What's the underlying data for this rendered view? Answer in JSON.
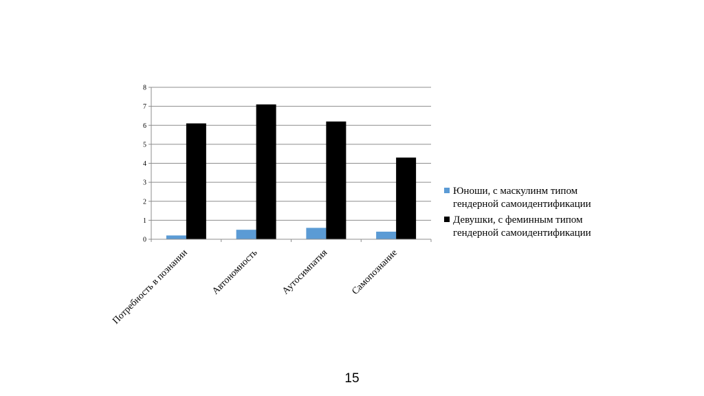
{
  "page": {
    "number": "15"
  },
  "chart_data": {
    "type": "bar",
    "categories": [
      "Потребность в познании",
      "Автономность",
      "Аутосимпатия",
      "Самопознание"
    ],
    "series": [
      {
        "name_lines": [
          "Юноши, с маскулинм типом",
          "гендерной самоидентификации"
        ],
        "color": "#5b9bd5",
        "values": [
          0.2,
          0.5,
          0.6,
          0.4
        ]
      },
      {
        "name_lines": [
          "Девушки, с феминным типом",
          "гендерной самоидентификации"
        ],
        "color": "#000000",
        "values": [
          6.1,
          7.1,
          6.2,
          4.3
        ]
      }
    ],
    "ylim": [
      0,
      8
    ],
    "yticks": [
      "0",
      "1",
      "2",
      "3",
      "4",
      "5",
      "6",
      "7",
      "8"
    ],
    "grid": true,
    "legend": "right"
  }
}
